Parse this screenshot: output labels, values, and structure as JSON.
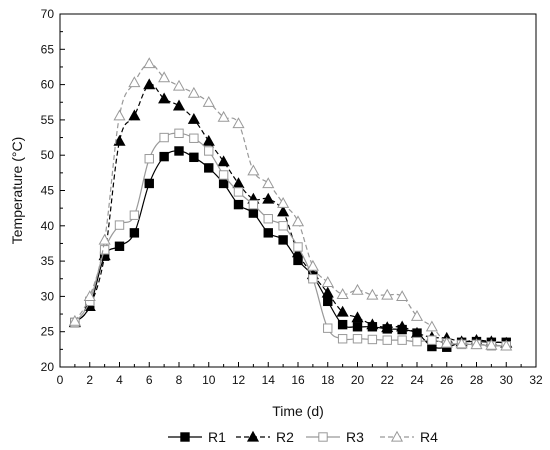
{
  "chart_data": {
    "type": "line",
    "xlabel": "Time (d)",
    "ylabel": "Temperature (°C)",
    "xlim": [
      0,
      32
    ],
    "ylim": [
      20,
      70
    ],
    "xticks": [
      0,
      2,
      4,
      6,
      8,
      10,
      12,
      14,
      16,
      18,
      20,
      22,
      24,
      26,
      28,
      30,
      32
    ],
    "yticks": [
      20,
      25,
      30,
      35,
      40,
      45,
      50,
      55,
      60,
      65,
      70
    ],
    "grid": false,
    "legend_position": "bottom",
    "x": [
      1,
      2,
      3,
      4,
      5,
      6,
      7,
      8,
      9,
      10,
      11,
      12,
      13,
      14,
      15,
      16,
      17,
      18,
      19,
      20,
      21,
      22,
      23,
      24,
      25,
      26,
      27,
      28,
      29,
      30
    ],
    "series": [
      {
        "name": "R1",
        "marker": "square-filled",
        "line": "solid",
        "color": "#000000",
        "values": [
          26.3,
          28.6,
          35.7,
          37.1,
          39.0,
          46.0,
          49.8,
          50.6,
          49.7,
          48.2,
          46.0,
          43.0,
          41.8,
          39.0,
          38.0,
          35.1,
          32.9,
          29.3,
          26.0,
          25.7,
          25.7,
          25.4,
          25.3,
          24.8,
          22.9,
          22.8,
          23.5,
          23.6,
          23.5,
          23.5
        ]
      },
      {
        "name": "R2",
        "marker": "triangle-filled",
        "line": "dashed",
        "color": "#000000",
        "values": [
          26.3,
          28.6,
          35.8,
          52.0,
          55.6,
          60.0,
          58.0,
          57.0,
          55.1,
          52.0,
          49.1,
          46.0,
          43.8,
          43.8,
          42.0,
          36.2,
          33.1,
          30.5,
          27.8,
          27.0,
          26.0,
          25.6,
          25.7,
          24.8,
          24.2,
          24.1,
          23.6,
          23.8,
          23.6,
          23.4
        ]
      },
      {
        "name": "R3",
        "marker": "square-open",
        "line": "solid",
        "color": "#999999",
        "values": [
          26.3,
          29.3,
          36.6,
          40.1,
          41.5,
          49.5,
          52.5,
          53.1,
          52.4,
          50.6,
          47.2,
          44.8,
          43.0,
          41.0,
          40.0,
          37.0,
          32.5,
          25.5,
          24.0,
          24.0,
          23.9,
          23.8,
          23.8,
          23.6,
          23.8,
          23.4,
          23.2,
          23.2,
          23.0,
          23.0
        ]
      },
      {
        "name": "R4",
        "marker": "triangle-open",
        "line": "dashed",
        "color": "#999999",
        "values": [
          26.5,
          30.0,
          38.0,
          55.6,
          60.3,
          63.0,
          61.0,
          59.8,
          58.8,
          57.5,
          55.4,
          54.5,
          47.8,
          46.0,
          43.2,
          40.6,
          34.3,
          32.0,
          30.3,
          30.9,
          30.2,
          30.2,
          30.0,
          27.2,
          25.7,
          23.4,
          23.3,
          23.2,
          23.1,
          23.0
        ]
      }
    ]
  }
}
